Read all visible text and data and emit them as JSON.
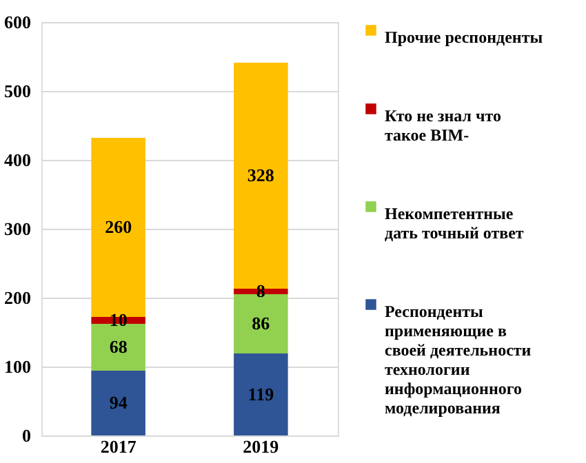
{
  "chart_data": {
    "type": "bar",
    "stacked": true,
    "categories": [
      "2017",
      "2019"
    ],
    "series": [
      {
        "name": "Респонденты применяющие в своей деятельности технологии информационного моделирования",
        "color": "#2f5597",
        "values": [
          94,
          119
        ]
      },
      {
        "name": "Некомпетентные дать точный ответ",
        "color": "#92d050",
        "values": [
          68,
          86
        ]
      },
      {
        "name": "Кто не знал что такое BIM-",
        "color": "#c00000",
        "values": [
          10,
          8
        ]
      },
      {
        "name": "Прочие респонденты",
        "color": "#ffc000",
        "values": [
          260,
          328
        ]
      }
    ],
    "ylim": [
      0,
      600
    ],
    "yticks": [
      0,
      100,
      200,
      300,
      400,
      500,
      600
    ],
    "grid": "y",
    "legend": "right",
    "data_labels": true
  }
}
